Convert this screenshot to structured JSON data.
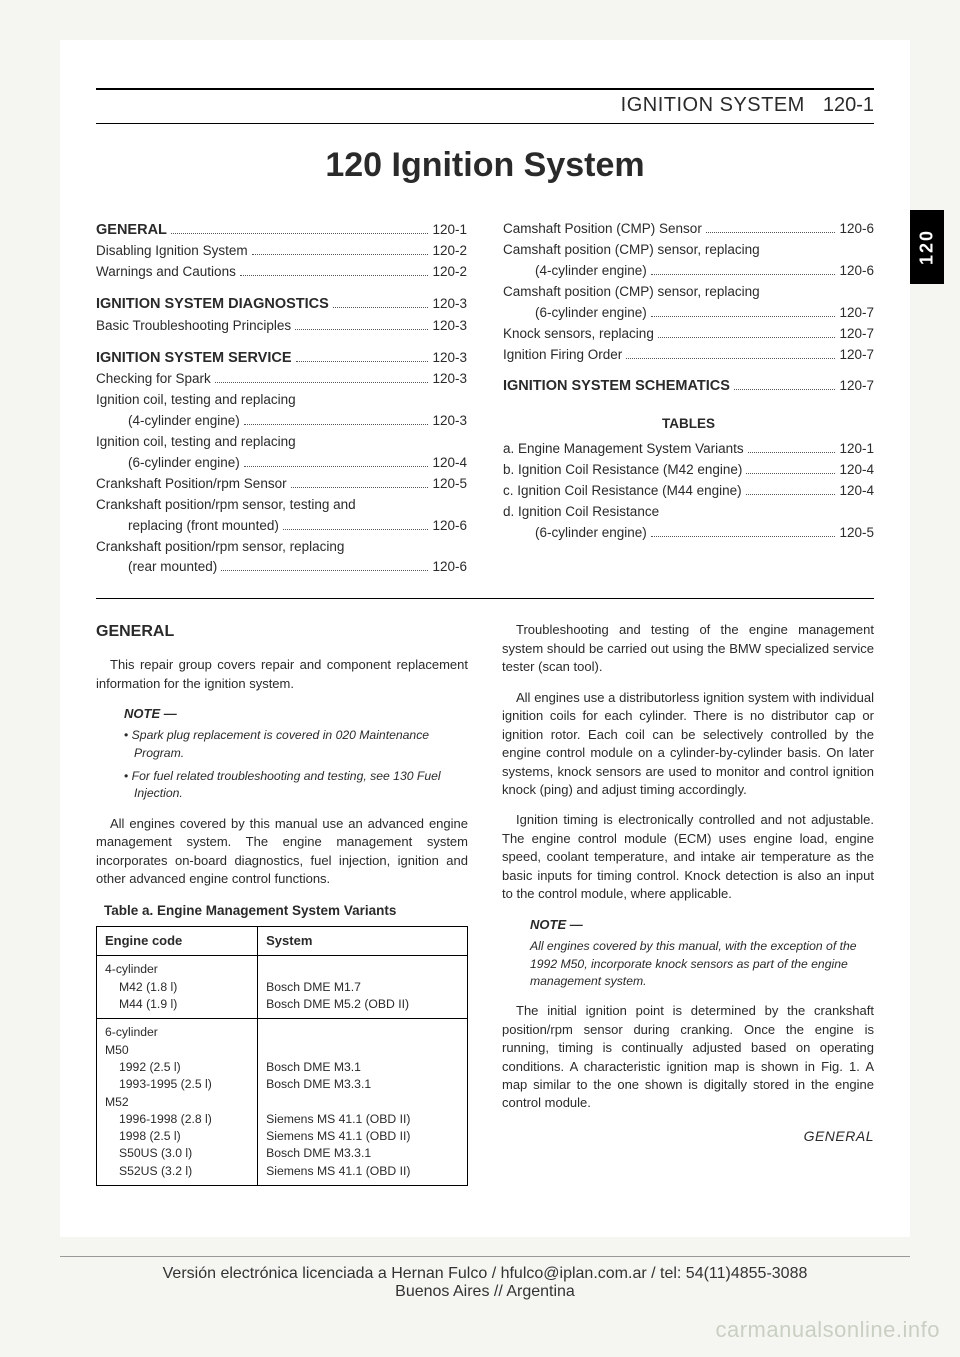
{
  "header": {
    "title": "IGNITION SYSTEM",
    "page_no": "120-1"
  },
  "chapter_title": "120 Ignition System",
  "side_tab": "120",
  "toc": {
    "left": [
      {
        "type": "head",
        "label": "GENERAL",
        "page": "120-1"
      },
      {
        "type": "entry",
        "label": "Disabling Ignition System",
        "page": "120-2"
      },
      {
        "type": "entry",
        "label": "Warnings and Cautions",
        "page": "120-2"
      },
      {
        "type": "spacer"
      },
      {
        "type": "head",
        "label": "IGNITION SYSTEM DIAGNOSTICS",
        "page": "120-3"
      },
      {
        "type": "entry",
        "label": "Basic Troubleshooting Principles",
        "page": "120-3"
      },
      {
        "type": "spacer"
      },
      {
        "type": "head",
        "label": "IGNITION SYSTEM SERVICE",
        "page": "120-3"
      },
      {
        "type": "entry",
        "label": "Checking for Spark",
        "page": "120-3"
      },
      {
        "type": "wrap",
        "label": "Ignition coil, testing and replacing",
        "cont": "(4-cylinder engine)",
        "page": "120-3"
      },
      {
        "type": "wrap",
        "label": "Ignition coil, testing and replacing",
        "cont": "(6-cylinder engine)",
        "page": "120-4"
      },
      {
        "type": "entry",
        "label": "Crankshaft Position/rpm Sensor",
        "page": "120-5"
      },
      {
        "type": "wrap",
        "label": "Crankshaft position/rpm sensor, testing and",
        "cont": "replacing (front mounted)",
        "page": "120-6"
      },
      {
        "type": "wrap",
        "label": "Crankshaft position/rpm sensor, replacing",
        "cont": "(rear mounted)",
        "page": "120-6"
      }
    ],
    "right": [
      {
        "type": "entry",
        "label": "Camshaft Position (CMP) Sensor",
        "page": "120-6"
      },
      {
        "type": "wrap",
        "label": "Camshaft position (CMP) sensor, replacing",
        "cont": "(4-cylinder engine)",
        "page": "120-6"
      },
      {
        "type": "wrap",
        "label": "Camshaft position (CMP) sensor, replacing",
        "cont": "(6-cylinder engine)",
        "page": "120-7"
      },
      {
        "type": "entry",
        "label": "Knock sensors, replacing",
        "page": "120-7"
      },
      {
        "type": "entry",
        "label": "Ignition Firing Order",
        "page": "120-7"
      },
      {
        "type": "spacer"
      },
      {
        "type": "head",
        "label": "IGNITION SYSTEM SCHEMATICS",
        "page": "120-7"
      },
      {
        "type": "spacer"
      },
      {
        "type": "tables_head",
        "label": "TABLES"
      },
      {
        "type": "entry",
        "label": "a. Engine Management System Variants",
        "page": "120-1"
      },
      {
        "type": "entry",
        "label": "b. Ignition Coil Resistance (M42 engine)",
        "page": "120-4"
      },
      {
        "type": "entry",
        "label": "c. Ignition Coil Resistance (M44 engine)",
        "page": "120-4"
      },
      {
        "type": "wrap",
        "label": "d. Ignition Coil Resistance",
        "cont": "(6-cylinder engine)",
        "page": "120-5"
      }
    ]
  },
  "body": {
    "left": {
      "section_head": "GENERAL",
      "p1": "This repair group covers repair and component replacement information for the ignition system.",
      "note_head": "NOTE —",
      "note_items": [
        "Spark plug replacement is covered in 020 Maintenance Program.",
        "For fuel related troubleshooting and testing, see 130 Fuel Injection."
      ],
      "p2": "All engines covered by this manual use an advanced engine management system. The engine management system incorporates on-board diagnostics, fuel injection, ignition and other advanced engine control functions.",
      "table_title": "Table a. Engine Management System Variants",
      "table": {
        "columns": [
          "Engine code",
          "System"
        ],
        "rows": [
          {
            "col1_head": "4-cylinder",
            "subs": [
              [
                "M42 (1.8 l)",
                "Bosch DME M1.7"
              ],
              [
                "M44 (1.9 l)",
                "Bosch DME M5.2 (OBD II)"
              ]
            ]
          },
          {
            "col1_head": "6-cylinder",
            "subs_groups": [
              {
                "group": "M50",
                "items": [
                  [
                    "1992 (2.5 l)",
                    "Bosch DME M3.1"
                  ],
                  [
                    "1993-1995 (2.5 l)",
                    "Bosch DME M3.3.1"
                  ]
                ]
              },
              {
                "group": "M52",
                "items": [
                  [
                    "1996-1998 (2.8 l)",
                    "Siemens MS 41.1 (OBD II)"
                  ],
                  [
                    "1998 (2.5 l)",
                    "Siemens MS 41.1 (OBD II)"
                  ],
                  [
                    "S50US (3.0 l)",
                    "Bosch DME M3.3.1"
                  ],
                  [
                    "S52US (3.2 l)",
                    "Siemens MS 41.1 (OBD II)"
                  ]
                ]
              }
            ]
          }
        ]
      }
    },
    "right": {
      "p1": "Troubleshooting and testing of the engine management system should be carried out using the BMW specialized service tester (scan tool).",
      "p2": "All engines use a distributorless ignition system with individual ignition coils for each cylinder. There is no distributor cap or ignition rotor. Each coil can be selectively controlled by the engine control module on a cylinder-by-cylinder basis. On later systems, knock sensors are used to monitor and control ignition knock (ping) and adjust timing accordingly.",
      "p3": "Ignition timing is electronically controlled and not adjustable. The engine control module (ECM) uses engine load, engine speed, coolant temperature, and intake air temperature as the basic inputs for timing control. Knock detection is also an input to the control module, where applicable.",
      "note_head": "NOTE —",
      "note_text": "All engines covered by this manual, with the exception of the 1992 M50, incorporate knock sensors as part of the engine management system.",
      "p4": "The initial ignition point is determined by the crankshaft position/rpm sensor during cranking. Once the engine is running, timing is continually adjusted based on operating conditions. A characteristic ignition map is shown in Fig. 1. A map similar to the one shown is digitally stored in the engine control module."
    }
  },
  "footer_label": "GENERAL",
  "license": {
    "line1": "Versión electrónica licenciada a Hernan Fulco / hfulco@iplan.com.ar / tel: 54(11)4855-3088",
    "line2": "Buenos Aires // Argentina"
  },
  "watermark": "carmanualsonline.info"
}
